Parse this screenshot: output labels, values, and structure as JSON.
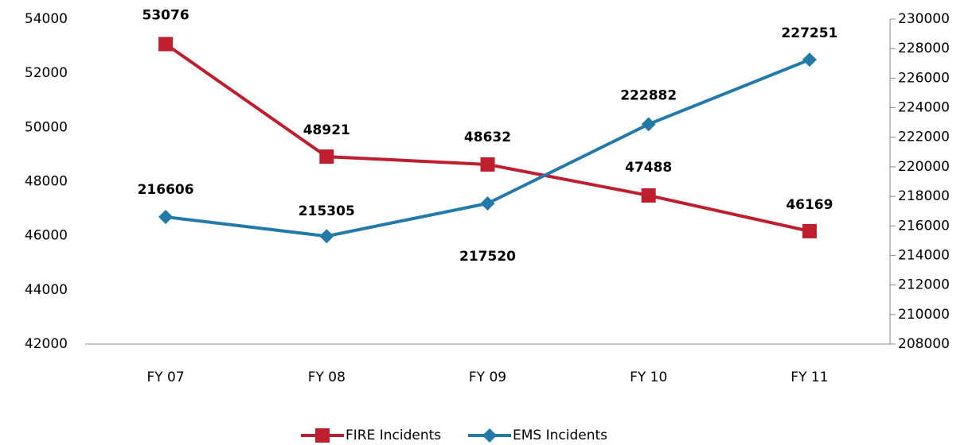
{
  "chart_data": {
    "type": "line",
    "categories": [
      "FY 07",
      "FY 08",
      "FY 09",
      "FY 10",
      "FY 11"
    ],
    "series": [
      {
        "name": "FIRE Incidents",
        "color": "#be1e2d",
        "marker": "square",
        "values": [
          53076,
          48921,
          48632,
          47488,
          46169
        ]
      },
      {
        "name": "EMS Incidents",
        "color": "#2379a8",
        "marker": "diamond",
        "axis": "y2",
        "values": [
          216606,
          215305,
          217520,
          222882,
          227251
        ]
      }
    ],
    "ylim": [
      42000,
      54000
    ],
    "yticks": [
      42000,
      44000,
      46000,
      48000,
      50000,
      52000,
      54000
    ],
    "y2lim": [
      208000,
      230000
    ],
    "y2ticks": [
      208000,
      210000,
      212000,
      214000,
      216000,
      218000,
      220000,
      222000,
      224000,
      226000,
      228000,
      230000
    ],
    "legend": "bottom"
  }
}
